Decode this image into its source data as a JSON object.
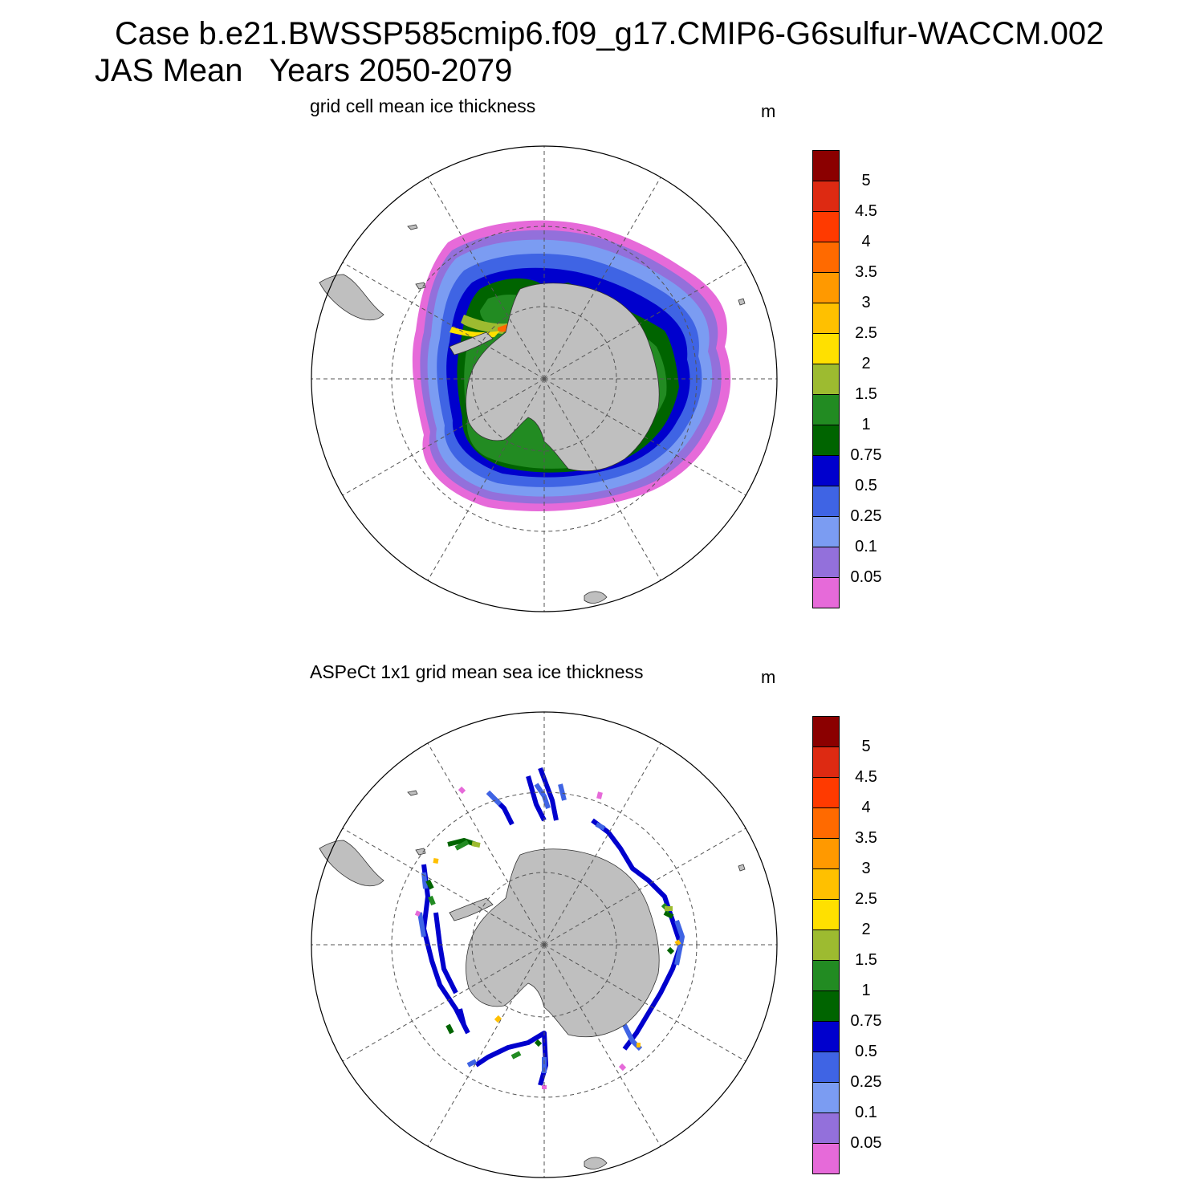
{
  "header": {
    "line1": "Case b.e21.BWSSP585cmip6.f09_g17.CMIP6-G6sulfur-WACCM.002",
    "line2": "JAS Mean   Years 2050-2079"
  },
  "panels": [
    {
      "title": "grid cell mean ice thickness",
      "units": "m"
    },
    {
      "title": "ASPeCt 1x1 grid mean sea ice thickness",
      "units": "m"
    }
  ],
  "colorbar": {
    "labels": [
      "5",
      "4.5",
      "4",
      "3.5",
      "3",
      "2.5",
      "2",
      "1.5",
      "1",
      "0.75",
      "0.5",
      "0.25",
      "0.1",
      "0.05"
    ],
    "colors_top_to_bottom": [
      "#8b0000",
      "#dd2a12",
      "#ff3a00",
      "#ff6a00",
      "#ff9900",
      "#ffc000",
      "#ffe000",
      "#9dbb30",
      "#228b22",
      "#006400",
      "#0000cd",
      "#3f64e4",
      "#7b9cf2",
      "#9370db",
      "#e66ad9"
    ]
  },
  "colors": {
    "land": "#bfbfbf",
    "grid": "#555555"
  }
}
